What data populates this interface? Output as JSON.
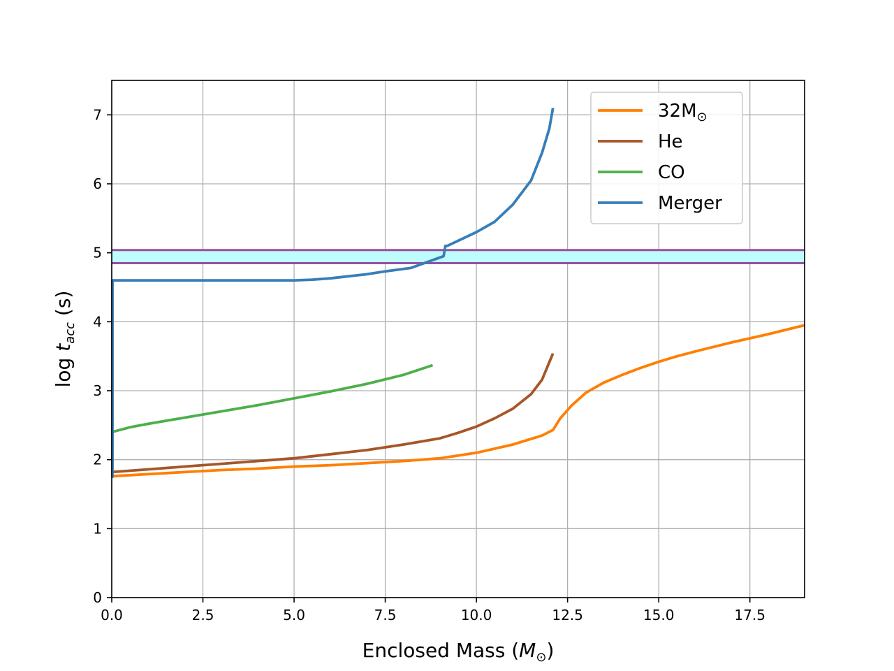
{
  "chart_data": {
    "type": "line",
    "title": "",
    "xlabel": {
      "prefix": "Enclosed Mass (",
      "symbol": "M",
      "sub": "⊙",
      "suffix": ")"
    },
    "ylabel": {
      "prefix": "log ",
      "symbol": "t",
      "sub": "acc",
      "suffix": " (s)"
    },
    "xlim": [
      0,
      19
    ],
    "ylim": [
      0,
      7.5
    ],
    "xticks": [
      0,
      2.5,
      5,
      7.5,
      10,
      12.5,
      15,
      17.5
    ],
    "xtick_labels": [
      "0.0",
      "2.5",
      "5.0",
      "7.5",
      "10.0",
      "12.5",
      "15.0",
      "17.5"
    ],
    "yticks": [
      0,
      1,
      2,
      3,
      4,
      5,
      6,
      7
    ],
    "ytick_labels": [
      "0",
      "1",
      "2",
      "3",
      "4",
      "5",
      "6",
      "7"
    ],
    "grid": true,
    "legend_position": "top-right",
    "band": {
      "y_low": 4.85,
      "y_high": 5.04,
      "fill_color": "#bffcfc",
      "edge_color": "#984ea3"
    },
    "series": [
      {
        "name": "32M",
        "name_sub": "⊙",
        "color": "#ff7f00",
        "x": [
          0,
          1,
          2,
          3,
          4,
          5,
          6,
          7,
          8,
          9,
          10,
          11,
          11.8,
          12.1,
          12.3,
          12.6,
          13,
          13.5,
          14,
          14.5,
          15,
          15.5,
          16,
          17,
          18,
          19
        ],
        "y": [
          1.76,
          1.79,
          1.82,
          1.85,
          1.87,
          1.9,
          1.92,
          1.95,
          1.98,
          2.02,
          2.1,
          2.22,
          2.35,
          2.43,
          2.6,
          2.78,
          2.97,
          3.12,
          3.23,
          3.33,
          3.42,
          3.5,
          3.57,
          3.7,
          3.82,
          3.95
        ]
      },
      {
        "name": "He",
        "color": "#a65628",
        "x": [
          0,
          1,
          2,
          3,
          4,
          5,
          6,
          7,
          8,
          9,
          9.5,
          10,
          10.5,
          11,
          11.5,
          11.8,
          12.1
        ],
        "y": [
          1.82,
          1.86,
          1.9,
          1.94,
          1.98,
          2.02,
          2.08,
          2.14,
          2.22,
          2.31,
          2.39,
          2.48,
          2.6,
          2.74,
          2.95,
          3.16,
          3.54
        ]
      },
      {
        "name": "CO",
        "color": "#4daf4a",
        "x": [
          0,
          0.5,
          1,
          2,
          3,
          4,
          5,
          6,
          7,
          8,
          8.8
        ],
        "y": [
          2.4,
          2.47,
          2.52,
          2.61,
          2.7,
          2.79,
          2.89,
          2.99,
          3.1,
          3.23,
          3.37
        ]
      },
      {
        "name": "Merger",
        "color": "#377eb8",
        "x": [
          0,
          0.02,
          0.02,
          1,
          2,
          3,
          4,
          5,
          5.5,
          6,
          6.5,
          7,
          7.5,
          8.2,
          9.1,
          9.15,
          9.2,
          10,
          10.5,
          11,
          11.5,
          11.8,
          12,
          12.1
        ],
        "y": [
          1.75,
          1.75,
          4.6,
          4.6,
          4.6,
          4.6,
          4.6,
          4.6,
          4.61,
          4.63,
          4.66,
          4.69,
          4.73,
          4.78,
          4.95,
          5.1,
          5.1,
          5.3,
          5.45,
          5.7,
          6.05,
          6.45,
          6.8,
          7.1
        ]
      }
    ]
  }
}
